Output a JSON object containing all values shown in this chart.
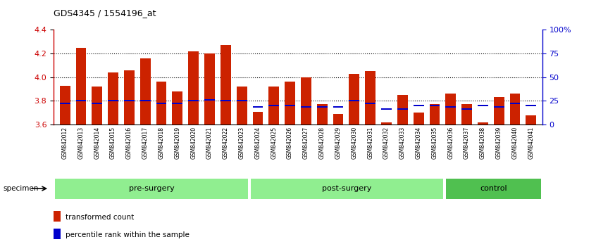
{
  "title": "GDS4345 / 1554196_at",
  "categories": [
    "GSM842012",
    "GSM842013",
    "GSM842014",
    "GSM842015",
    "GSM842016",
    "GSM842017",
    "GSM842018",
    "GSM842019",
    "GSM842020",
    "GSM842021",
    "GSM842022",
    "GSM842023",
    "GSM842024",
    "GSM842025",
    "GSM842026",
    "GSM842027",
    "GSM842028",
    "GSM842029",
    "GSM842030",
    "GSM842031",
    "GSM842032",
    "GSM842033",
    "GSM842034",
    "GSM842035",
    "GSM842036",
    "GSM842037",
    "GSM842038",
    "GSM842039",
    "GSM842040",
    "GSM842041"
  ],
  "red_values": [
    3.93,
    4.25,
    3.92,
    4.04,
    4.06,
    4.16,
    3.96,
    3.88,
    4.22,
    4.2,
    4.27,
    3.92,
    3.71,
    3.92,
    3.96,
    4.0,
    3.77,
    3.69,
    4.03,
    4.05,
    3.62,
    3.85,
    3.7,
    3.77,
    3.86,
    3.77,
    3.62,
    3.83,
    3.86,
    3.68
  ],
  "blue_values": [
    3.78,
    3.8,
    3.78,
    3.8,
    3.8,
    3.8,
    3.78,
    3.78,
    3.8,
    3.81,
    3.8,
    3.8,
    3.75,
    3.76,
    3.76,
    3.75,
    3.75,
    3.75,
    3.8,
    3.78,
    3.73,
    3.73,
    3.76,
    3.76,
    3.75,
    3.73,
    3.76,
    3.75,
    3.78,
    3.76
  ],
  "ylim": [
    3.6,
    4.4
  ],
  "yticks_left": [
    3.6,
    3.8,
    4.0,
    4.2,
    4.4
  ],
  "yticks_right_pct": [
    0,
    25,
    50,
    75,
    100
  ],
  "yticks_right_labels": [
    "0",
    "25",
    "50",
    "75",
    "100%"
  ],
  "bar_color": "#CC2200",
  "dot_color": "#0000CC",
  "baseline": 3.6,
  "gridline_y": [
    3.8,
    4.0,
    4.2
  ],
  "bar_width": 0.65,
  "group_ranges": [
    [
      0,
      12
    ],
    [
      12,
      24
    ],
    [
      24,
      30
    ]
  ],
  "group_labels": [
    "pre-surgery",
    "post-surgery",
    "control"
  ],
  "group_light_color": "#90EE90",
  "group_dark_color": "#50C050",
  "xtick_bg_color": "#C8C8C8",
  "left_axis_color": "#CC0000",
  "right_axis_color": "#0000CC"
}
